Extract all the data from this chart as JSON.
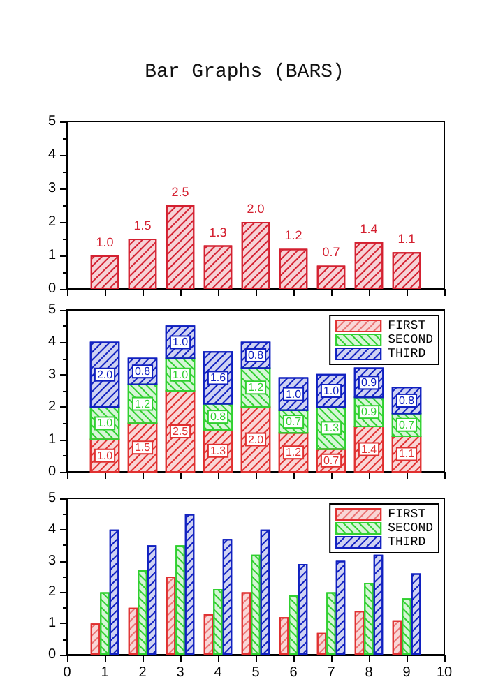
{
  "chart_data": [
    {
      "type": "bar",
      "title": "Bar Graphs (BARS)",
      "x": [
        1,
        2,
        3,
        4,
        5,
        6,
        7,
        8,
        9
      ],
      "xlim": [
        0,
        10
      ],
      "xticks": [
        0,
        1,
        2,
        3,
        4,
        5,
        6,
        7,
        8,
        9,
        10
      ],
      "ylim": [
        0,
        5
      ],
      "yticks": [
        0,
        1,
        2,
        3,
        4,
        5
      ],
      "tick_labels": "y",
      "grid": false,
      "legend": false,
      "series": [
        {
          "color": "#d42030",
          "values": [
            1.0,
            1.5,
            2.5,
            1.3,
            2.0,
            1.2,
            0.7,
            1.4,
            1.1
          ],
          "value_labels": [
            "1.0",
            "1.5",
            "2.5",
            "1.3",
            "2.0",
            "1.2",
            "0.7",
            "1.4",
            "1.1"
          ]
        }
      ]
    },
    {
      "type": "bar",
      "stacked": true,
      "x": [
        1,
        2,
        3,
        4,
        5,
        6,
        7,
        8,
        9
      ],
      "xlim": [
        0,
        10
      ],
      "xticks": [
        0,
        1,
        2,
        3,
        4,
        5,
        6,
        7,
        8,
        9,
        10
      ],
      "ylim": [
        0,
        5
      ],
      "yticks": [
        0,
        1,
        2,
        3,
        4,
        5
      ],
      "tick_labels": "y",
      "grid": false,
      "legend": "top right",
      "series": [
        {
          "name": "FIRST",
          "color": "#e03030",
          "values": [
            1.0,
            1.5,
            2.5,
            1.3,
            2.0,
            1.2,
            0.7,
            1.4,
            1.1
          ],
          "value_labels": [
            "1.0",
            "1.5",
            "2.5",
            "1.3",
            "2.0",
            "1.2",
            "0.7",
            "1.4",
            "1.1"
          ]
        },
        {
          "name": "SECOND",
          "color": "#30d030",
          "values": [
            1.0,
            1.2,
            1.0,
            0.8,
            1.2,
            0.7,
            1.3,
            0.9,
            0.7
          ],
          "value_labels": [
            "1.0",
            "1.2",
            "1.0",
            "0.8",
            "1.2",
            "0.7",
            "1.3",
            "0.9",
            "0.7"
          ]
        },
        {
          "name": "THIRD",
          "color": "#1020c0",
          "values": [
            2.0,
            0.8,
            1.0,
            1.6,
            0.8,
            1.0,
            1.0,
            0.9,
            0.8
          ],
          "value_labels": [
            "2.0",
            "0.8",
            "1.0",
            "1.6",
            "0.8",
            "1.0",
            "1.0",
            "0.9",
            "0.8"
          ]
        }
      ]
    },
    {
      "type": "bar",
      "x": [
        1,
        2,
        3,
        4,
        5,
        6,
        7,
        8,
        9
      ],
      "xlim": [
        0,
        10
      ],
      "xticks": [
        0,
        1,
        2,
        3,
        4,
        5,
        6,
        7,
        8,
        9,
        10
      ],
      "ylim": [
        0,
        5
      ],
      "yticks": [
        0,
        1,
        2,
        3,
        4,
        5
      ],
      "grid": false,
      "legend": "top right",
      "series": [
        {
          "name": "FIRST",
          "color": "#e03030",
          "values": [
            1.0,
            1.5,
            2.5,
            1.3,
            2.0,
            1.2,
            0.7,
            1.4,
            1.1
          ]
        },
        {
          "name": "SECOND",
          "color": "#30d030",
          "values": [
            2.0,
            2.7,
            3.5,
            2.1,
            3.2,
            1.9,
            2.0,
            2.3,
            1.8
          ]
        },
        {
          "name": "THIRD",
          "color": "#1020c0",
          "values": [
            4.0,
            3.5,
            4.5,
            3.7,
            4.0,
            2.9,
            3.0,
            3.2,
            2.6
          ]
        }
      ]
    }
  ]
}
